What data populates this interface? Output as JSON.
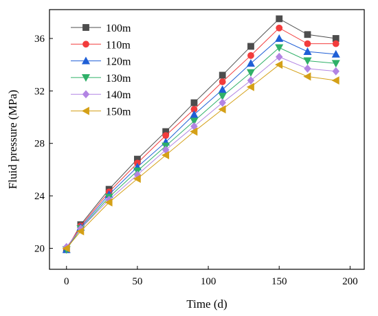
{
  "chart_data": {
    "type": "line",
    "xlabel": "Time (d)",
    "ylabel": "Fluid pressure (MPa)",
    "xlim": [
      -12,
      210
    ],
    "ylim": [
      18.4,
      38.2
    ],
    "xticks": [
      0,
      50,
      100,
      150,
      200
    ],
    "yticks": [
      20,
      24,
      28,
      32,
      36
    ],
    "grid": false,
    "legend_position": "top-left",
    "x": [
      0,
      10,
      30,
      50,
      70,
      90,
      110,
      130,
      150,
      170,
      190
    ],
    "series": [
      {
        "name": "100m",
        "color": "#4d4d4d",
        "marker": "square",
        "values": [
          19.9,
          21.8,
          24.5,
          26.8,
          28.9,
          31.1,
          33.2,
          35.4,
          37.5,
          36.3,
          36.0
        ]
      },
      {
        "name": "110m",
        "color": "#f23c3c",
        "marker": "circle",
        "values": [
          20.0,
          21.7,
          24.3,
          26.5,
          28.6,
          30.6,
          32.7,
          34.7,
          36.8,
          35.6,
          35.6
        ]
      },
      {
        "name": "120m",
        "color": "#1f5fd6",
        "marker": "triangle-up",
        "values": [
          19.9,
          21.6,
          24.1,
          26.2,
          28.1,
          30.2,
          32.1,
          34.1,
          36.0,
          35.0,
          34.8
        ]
      },
      {
        "name": "130m",
        "color": "#2fb068",
        "marker": "triangle-down",
        "values": [
          19.9,
          21.5,
          23.9,
          25.9,
          27.8,
          29.7,
          31.6,
          33.4,
          35.3,
          34.3,
          34.1
        ]
      },
      {
        "name": "140m",
        "color": "#b284e3",
        "marker": "diamond",
        "values": [
          20.1,
          21.5,
          23.7,
          25.6,
          27.5,
          29.3,
          31.1,
          32.8,
          34.6,
          33.7,
          33.5
        ]
      },
      {
        "name": "150m",
        "color": "#d4a017",
        "marker": "triangle-left",
        "values": [
          20.0,
          21.3,
          23.5,
          25.3,
          27.1,
          28.9,
          30.6,
          32.3,
          34.0,
          33.1,
          32.8
        ]
      }
    ]
  }
}
